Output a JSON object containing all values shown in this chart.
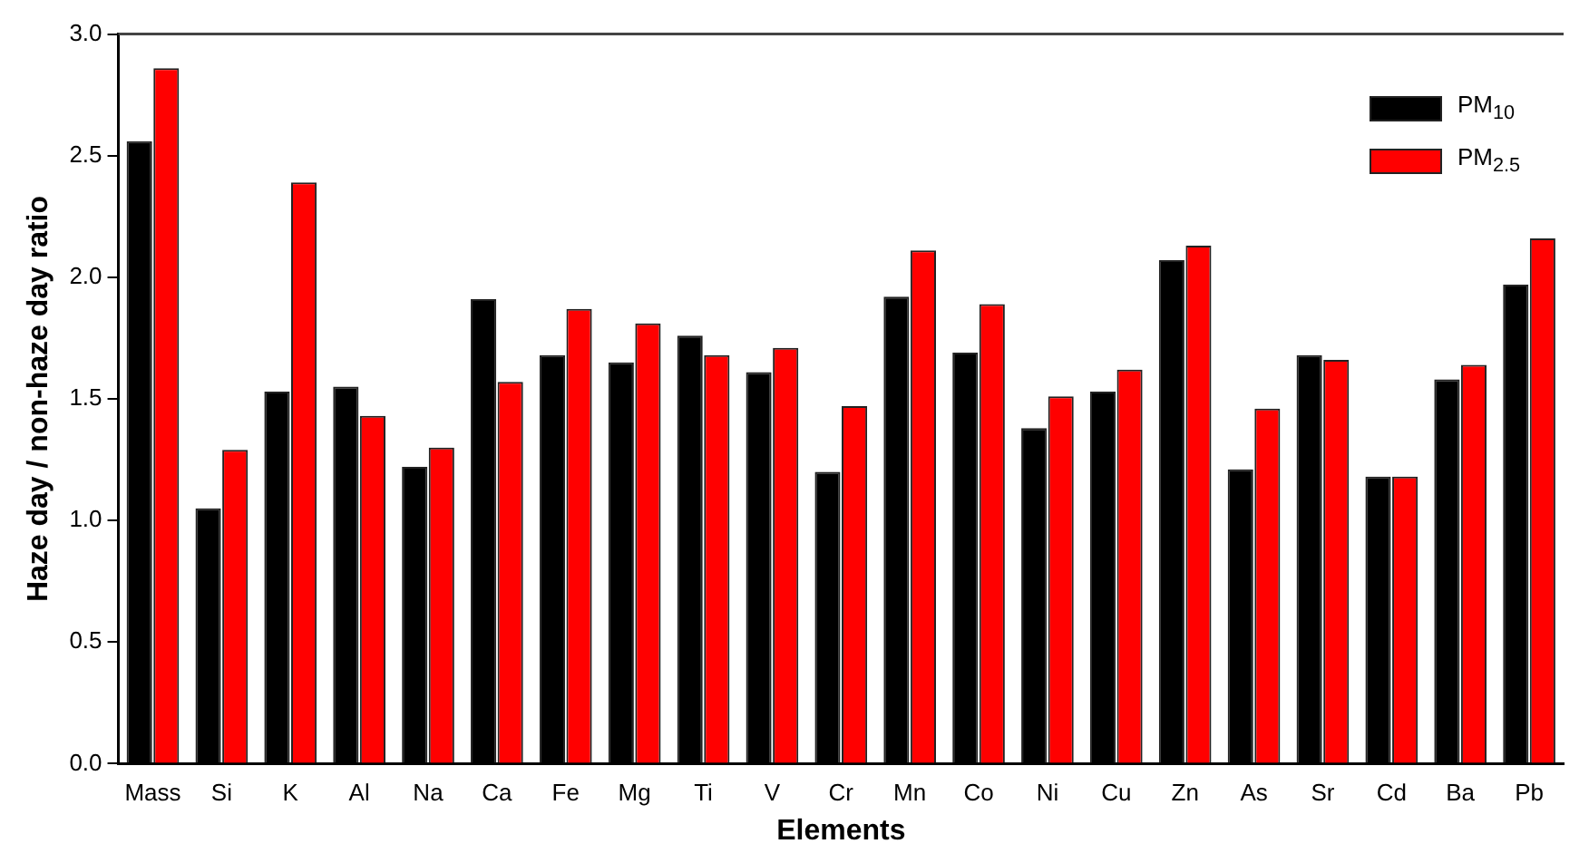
{
  "chart_data": {
    "type": "bar",
    "xlabel": "Elements",
    "ylabel": "Haze day / non-haze day ratio",
    "categories": [
      "Mass",
      "Si",
      "K",
      "Al",
      "Na",
      "Ca",
      "Fe",
      "Mg",
      "Ti",
      "V",
      "Cr",
      "Mn",
      "Co",
      "Ni",
      "Cu",
      "Zn",
      "As",
      "Sr",
      "Cd",
      "Ba",
      "Pb"
    ],
    "series": [
      {
        "name": "PM$_{10}$",
        "color": "#000000",
        "values": [
          2.56,
          1.05,
          1.53,
          1.55,
          1.22,
          1.91,
          1.68,
          1.65,
          1.76,
          1.61,
          1.2,
          1.92,
          1.69,
          1.38,
          1.53,
          2.07,
          1.21,
          1.68,
          1.18,
          1.58,
          1.97
        ]
      },
      {
        "name": "PM$_{2.5}$",
        "color": "#ff0000",
        "values": [
          2.86,
          1.29,
          2.39,
          1.43,
          1.3,
          1.57,
          1.87,
          1.81,
          1.68,
          1.71,
          1.47,
          2.11,
          1.89,
          1.51,
          1.62,
          2.13,
          1.46,
          1.66,
          1.18,
          1.64,
          2.16
        ]
      }
    ],
    "ylim": [
      0,
      3
    ],
    "yticks": [
      {
        "value": 0,
        "label": "0.0"
      },
      {
        "value": 0.5,
        "label": "0.5"
      },
      {
        "value": 1,
        "label": "1.0"
      },
      {
        "value": 1.5,
        "label": "1.5"
      },
      {
        "value": 2,
        "label": "2.0"
      },
      {
        "value": 2.5,
        "label": "2.5"
      },
      {
        "value": 3,
        "label": "3.0"
      }
    ],
    "grid": false,
    "legend": "top right"
  }
}
